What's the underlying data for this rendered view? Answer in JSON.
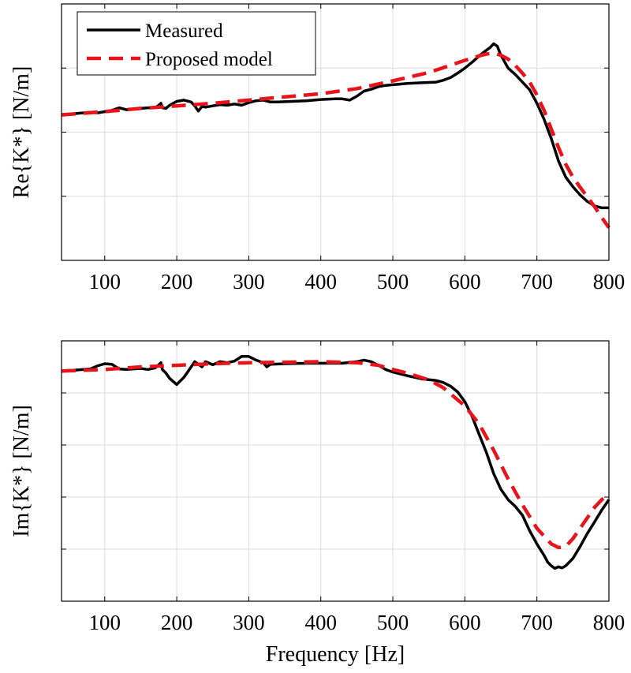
{
  "chart_data": [
    {
      "type": "line",
      "title": "",
      "xlabel": "",
      "ylabel": "Re{K*} [N/m]",
      "xlim": [
        40,
        800
      ],
      "ylim": [
        0,
        4
      ],
      "y_tick_labels_shown": false,
      "x_ticks": [
        100,
        200,
        300,
        400,
        500,
        600,
        700,
        800
      ],
      "y_ticks": [
        0,
        1,
        2,
        3,
        4
      ],
      "grid": true,
      "legend": {
        "position": "top-left",
        "entries": [
          "Measured",
          "Proposed model"
        ]
      },
      "series": [
        {
          "name": "Measured",
          "color": "#000000",
          "style": "solid",
          "x": [
            40,
            60,
            70,
            80,
            90,
            100,
            110,
            120,
            130,
            140,
            150,
            160,
            170,
            175,
            178,
            180,
            185,
            190,
            200,
            210,
            220,
            225,
            230,
            235,
            240,
            250,
            260,
            270,
            280,
            290,
            300,
            310,
            320,
            330,
            340,
            360,
            380,
            400,
            420,
            430,
            440,
            450,
            460,
            470,
            480,
            490,
            500,
            520,
            540,
            560,
            570,
            580,
            590,
            600,
            610,
            620,
            630,
            635,
            640,
            645,
            650,
            660,
            670,
            680,
            690,
            700,
            710,
            720,
            730,
            740,
            750,
            760,
            770,
            780,
            790,
            800
          ],
          "y": [
            2.27,
            2.29,
            2.3,
            2.31,
            2.3,
            2.32,
            2.34,
            2.38,
            2.35,
            2.36,
            2.37,
            2.38,
            2.38,
            2.42,
            2.45,
            2.38,
            2.37,
            2.42,
            2.48,
            2.5,
            2.47,
            2.41,
            2.33,
            2.4,
            2.39,
            2.41,
            2.43,
            2.42,
            2.44,
            2.42,
            2.46,
            2.49,
            2.5,
            2.47,
            2.47,
            2.48,
            2.49,
            2.51,
            2.52,
            2.52,
            2.5,
            2.56,
            2.64,
            2.67,
            2.71,
            2.73,
            2.74,
            2.76,
            2.77,
            2.78,
            2.81,
            2.85,
            2.92,
            3.0,
            3.09,
            3.19,
            3.28,
            3.32,
            3.38,
            3.34,
            3.2,
            3.0,
            2.9,
            2.78,
            2.66,
            2.45,
            2.2,
            1.9,
            1.55,
            1.3,
            1.15,
            1.02,
            0.92,
            0.85,
            0.82,
            0.82
          ]
        },
        {
          "name": "Proposed model",
          "color": "#e8141c",
          "style": "dashed",
          "x": [
            40,
            100,
            150,
            200,
            250,
            300,
            350,
            400,
            450,
            500,
            550,
            600,
            620,
            630,
            640,
            650,
            660,
            670,
            680,
            690,
            700,
            710,
            720,
            730,
            740,
            750,
            760,
            770,
            780,
            790,
            800
          ],
          "y": [
            2.27,
            2.32,
            2.37,
            2.41,
            2.45,
            2.5,
            2.55,
            2.6,
            2.68,
            2.8,
            2.93,
            3.12,
            3.19,
            3.22,
            3.23,
            3.2,
            3.14,
            3.04,
            2.92,
            2.78,
            2.58,
            2.34,
            2.05,
            1.76,
            1.5,
            1.3,
            1.14,
            0.99,
            0.84,
            0.67,
            0.51
          ]
        }
      ]
    },
    {
      "type": "line",
      "title": "",
      "xlabel": "Frequency [Hz]",
      "ylabel": "Im{K*} [N/m]",
      "xlim": [
        40,
        800
      ],
      "ylim": [
        -1,
        4
      ],
      "y_tick_labels_shown": false,
      "x_ticks": [
        100,
        200,
        300,
        400,
        500,
        600,
        700,
        800
      ],
      "y_ticks": [
        -1,
        0,
        1,
        2,
        3,
        4
      ],
      "grid": true,
      "series": [
        {
          "name": "Measured",
          "color": "#000000",
          "style": "solid",
          "x": [
            40,
            60,
            80,
            90,
            100,
            110,
            120,
            130,
            140,
            150,
            160,
            170,
            175,
            178,
            180,
            185,
            190,
            200,
            210,
            220,
            225,
            230,
            235,
            240,
            250,
            260,
            270,
            280,
            290,
            300,
            310,
            320,
            325,
            330,
            350,
            380,
            400,
            430,
            450,
            460,
            470,
            480,
            490,
            500,
            520,
            540,
            560,
            570,
            580,
            590,
            600,
            610,
            620,
            630,
            640,
            650,
            660,
            670,
            680,
            690,
            700,
            710,
            715,
            720,
            725,
            730,
            735,
            740,
            750,
            760,
            770,
            780,
            790,
            800
          ],
          "y": [
            3.42,
            3.44,
            3.46,
            3.52,
            3.56,
            3.55,
            3.46,
            3.45,
            3.46,
            3.47,
            3.45,
            3.48,
            3.54,
            3.58,
            3.45,
            3.38,
            3.28,
            3.16,
            3.3,
            3.5,
            3.6,
            3.55,
            3.5,
            3.6,
            3.54,
            3.6,
            3.58,
            3.61,
            3.7,
            3.7,
            3.63,
            3.58,
            3.5,
            3.55,
            3.56,
            3.57,
            3.57,
            3.57,
            3.6,
            3.63,
            3.6,
            3.53,
            3.45,
            3.4,
            3.33,
            3.27,
            3.24,
            3.2,
            3.13,
            3.02,
            2.83,
            2.55,
            2.2,
            1.85,
            1.45,
            1.15,
            0.95,
            0.82,
            0.65,
            0.35,
            0.1,
            -0.12,
            -0.25,
            -0.32,
            -0.37,
            -0.34,
            -0.36,
            -0.32,
            -0.18,
            0.05,
            0.3,
            0.52,
            0.75,
            0.95
          ]
        },
        {
          "name": "Proposed model",
          "color": "#e8141c",
          "style": "dashed",
          "x": [
            40,
            100,
            150,
            200,
            250,
            300,
            350,
            400,
            450,
            480,
            500,
            520,
            550,
            570,
            600,
            620,
            640,
            660,
            680,
            700,
            720,
            730,
            740,
            750,
            760,
            770,
            780,
            790,
            800
          ],
          "y": [
            3.42,
            3.45,
            3.5,
            3.53,
            3.56,
            3.58,
            3.59,
            3.6,
            3.58,
            3.53,
            3.45,
            3.38,
            3.25,
            3.1,
            2.75,
            2.4,
            1.9,
            1.35,
            0.85,
            0.4,
            0.1,
            0.03,
            0.05,
            0.2,
            0.4,
            0.6,
            0.8,
            0.95,
            1.05
          ]
        }
      ]
    }
  ]
}
